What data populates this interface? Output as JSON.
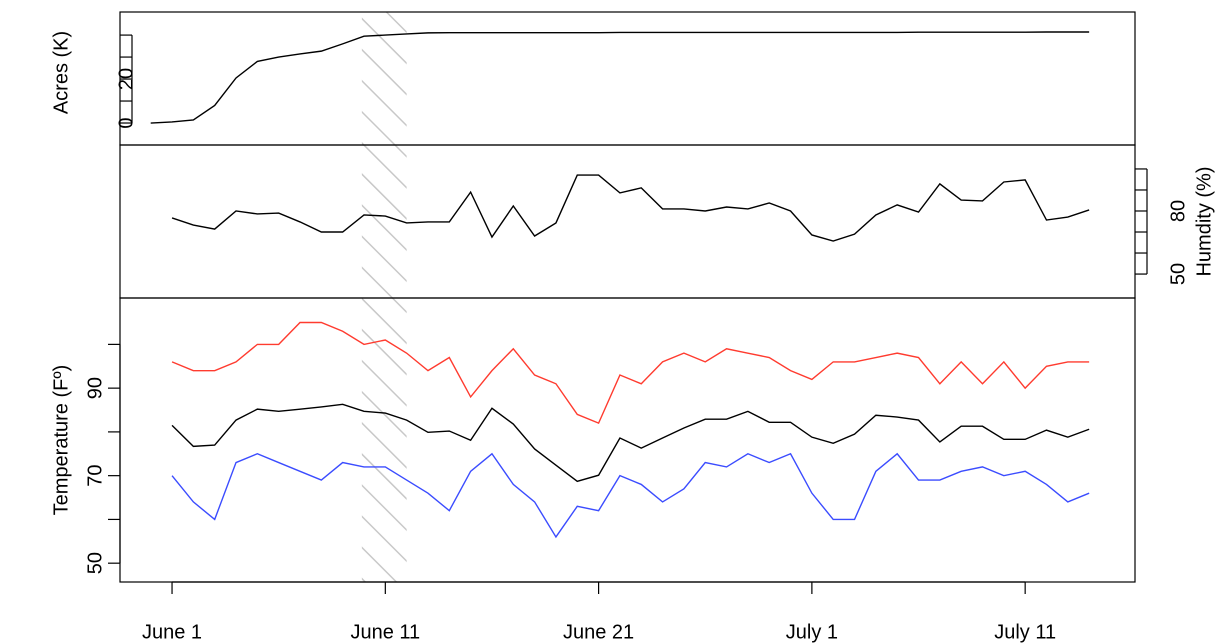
{
  "chart_data": [
    {
      "type": "line",
      "ylabel": "Acres (K)",
      "yaxis_side": "left",
      "x": [
        -1,
        0,
        1,
        2,
        3,
        4,
        5,
        6,
        7,
        8,
        9,
        10,
        11,
        12,
        13,
        14,
        15,
        16,
        17,
        18,
        19,
        20,
        21,
        22,
        23,
        24,
        25,
        26,
        27,
        28,
        29,
        30,
        31,
        32,
        33,
        34,
        35,
        36,
        37,
        38,
        39,
        40,
        41,
        42,
        43
      ],
      "values": [
        0,
        0.5,
        1.4,
        8,
        20.5,
        28,
        30,
        31.4,
        32.7,
        36,
        39.5,
        40,
        40.5,
        41,
        41.1,
        41.1,
        41.1,
        41.1,
        41.1,
        41.1,
        41.1,
        41.1,
        41.2,
        41.2,
        41.2,
        41.2,
        41.2,
        41.2,
        41.2,
        41.2,
        41.2,
        41.2,
        41.2,
        41.2,
        41.2,
        41.2,
        41.3,
        41.3,
        41.3,
        41.3,
        41.3,
        41.3,
        41.4,
        41.4,
        41.4
      ],
      "color": "#000000",
      "xlim": [
        -2.44,
        45.15
      ],
      "ylim": [
        -10,
        50.5
      ],
      "yticks": [
        0,
        20
      ],
      "yminorticks": [
        10,
        30,
        40
      ]
    },
    {
      "type": "line",
      "ylabel": "Humdity (%)",
      "yaxis_side": "right",
      "x": [
        0,
        1,
        2,
        3,
        4,
        5,
        6,
        7,
        8,
        9,
        10,
        11,
        12,
        13,
        14,
        15,
        16,
        17,
        18,
        19,
        20,
        21,
        22,
        23,
        24,
        25,
        26,
        27,
        28,
        29,
        30,
        31,
        32,
        33,
        34,
        35,
        36,
        37,
        38,
        39,
        40,
        41,
        42,
        43
      ],
      "values": [
        76.7,
        73.3,
        71.4,
        80,
        78.6,
        79,
        74.8,
        70,
        70,
        78.1,
        77.6,
        74.3,
        74.8,
        74.8,
        89,
        67.6,
        82.4,
        68.1,
        74.3,
        97.1,
        97.1,
        88.6,
        91,
        81,
        81,
        80,
        81.9,
        81,
        83.8,
        80,
        68.6,
        65.7,
        69,
        78.1,
        82.9,
        79.5,
        92.9,
        85.2,
        84.8,
        93.8,
        94.8,
        75.7,
        77.1,
        80.5
      ],
      "color": "#000000",
      "xlim": [
        -2.44,
        45.15
      ],
      "ylim": [
        38.6,
        111.4
      ],
      "yticks": [
        50,
        80
      ],
      "yminorticks": [
        60,
        70,
        90,
        100
      ]
    },
    {
      "type": "line",
      "ylabel": "Temperature (Fº)",
      "yaxis_side": "left",
      "x": [
        0,
        1,
        2,
        3,
        4,
        5,
        6,
        7,
        8,
        9,
        10,
        11,
        12,
        13,
        14,
        15,
        16,
        17,
        18,
        19,
        20,
        21,
        22,
        23,
        24,
        25,
        26,
        27,
        28,
        29,
        30,
        31,
        32,
        33,
        34,
        35,
        36,
        37,
        38,
        39,
        40,
        41,
        42,
        43
      ],
      "series": [
        {
          "color": "#ff3b2f",
          "values": [
            96,
            94,
            94,
            96,
            100,
            100,
            105,
            105,
            103,
            100,
            101,
            98,
            94,
            97,
            88,
            94,
            99,
            93,
            91,
            84,
            82,
            93,
            91,
            96,
            98,
            96,
            99,
            98,
            97,
            94,
            92,
            96,
            96,
            97,
            98,
            97,
            91,
            96,
            91,
            96,
            90,
            95,
            96,
            96
          ]
        },
        {
          "color": "#000000",
          "values": [
            81.5,
            76.7,
            77,
            82.7,
            85.2,
            84.7,
            85.2,
            85.7,
            86.3,
            84.7,
            84.3,
            82.7,
            79.9,
            80.2,
            78.1,
            85.4,
            81.8,
            76.1,
            72.4,
            68.7,
            70.1,
            78.6,
            76.3,
            78.6,
            80.9,
            82.9,
            82.9,
            84.7,
            82.2,
            82.2,
            78.8,
            77.4,
            79.5,
            83.8,
            83.4,
            82.7,
            77.7,
            81.3,
            81.3,
            78.3,
            78.3,
            80.4,
            78.8,
            80.6
          ]
        },
        {
          "color": "#3b4cff",
          "values": [
            70,
            64,
            60,
            73,
            75,
            73,
            71,
            69,
            73,
            72,
            72,
            69,
            66,
            62,
            71,
            75,
            68,
            64,
            56,
            63,
            62,
            70,
            68,
            64,
            67,
            73,
            72,
            75,
            73,
            75,
            66,
            60,
            60,
            71,
            75,
            69,
            69,
            71,
            72,
            70,
            71,
            68,
            64,
            66
          ]
        }
      ],
      "xlim": [
        -2.44,
        45.15
      ],
      "ylim": [
        45.7,
        110.6
      ],
      "yticks": [
        50,
        70,
        90
      ],
      "yminorticks": [
        60,
        80,
        100
      ],
      "xticks": [
        {
          "value": 0,
          "label": "June 1"
        },
        {
          "value": 10,
          "label": "June 11"
        },
        {
          "value": 20,
          "label": "June 21"
        },
        {
          "value": 30,
          "label": "July 1"
        },
        {
          "value": 40,
          "label": "July 11"
        }
      ],
      "highlight_x": [
        8.9,
        11
      ]
    }
  ]
}
